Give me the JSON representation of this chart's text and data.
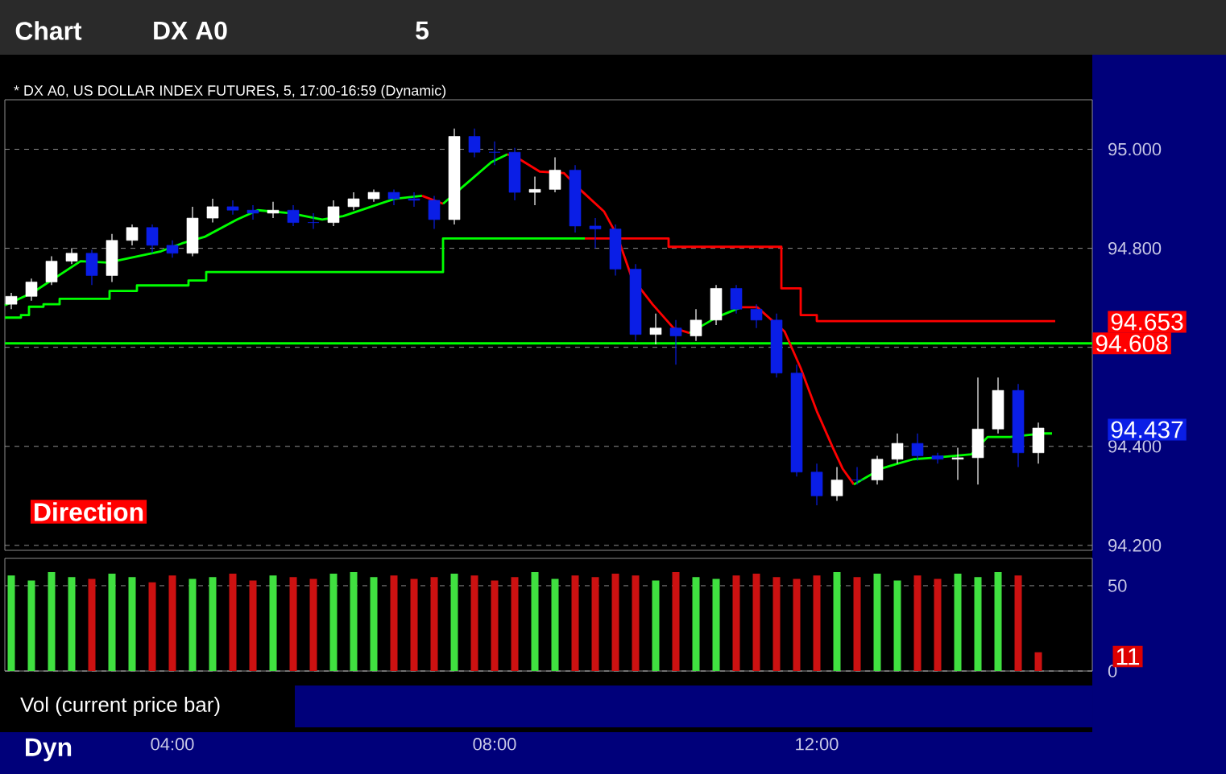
{
  "chart_data": [
    {
      "type": "candlestick",
      "title": "* DX A0, US DOLLAR INDEX FUTURES, 5, 17:00-16:59 (Dynamic)",
      "x": [
        2.0,
        2.25,
        2.5,
        2.75,
        3.0,
        3.25,
        3.5,
        3.75,
        4.0,
        4.25,
        4.5,
        4.75,
        5.0,
        5.25,
        5.5,
        5.75,
        6.0,
        6.25,
        6.5,
        6.75,
        7.0,
        7.25,
        7.5,
        7.75,
        8.0,
        8.25,
        8.5,
        8.75,
        9.0,
        9.25,
        9.5,
        9.75,
        10.0,
        10.25,
        10.5,
        10.75,
        11.0,
        11.25,
        11.5,
        11.75,
        12.0,
        12.25,
        12.5,
        12.75,
        13.0,
        13.25,
        13.5,
        13.75,
        14.0,
        14.25,
        14.5,
        14.75
      ],
      "ohlc": [
        [
          94.687,
          94.71,
          94.677,
          94.703
        ],
        [
          94.703,
          94.739,
          94.694,
          94.732
        ],
        [
          94.732,
          94.784,
          94.726,
          94.774
        ],
        [
          94.774,
          94.8,
          94.768,
          94.79
        ],
        [
          94.79,
          94.797,
          94.726,
          94.745
        ],
        [
          94.745,
          94.829,
          94.732,
          94.816
        ],
        [
          94.816,
          94.848,
          94.806,
          94.842
        ],
        [
          94.842,
          94.848,
          94.79,
          94.806
        ],
        [
          94.806,
          94.816,
          94.781,
          94.79
        ],
        [
          94.79,
          94.884,
          94.784,
          94.861
        ],
        [
          94.861,
          94.9,
          94.852,
          94.884
        ],
        [
          94.884,
          94.897,
          94.868,
          94.877
        ],
        [
          94.877,
          94.887,
          94.858,
          94.871
        ],
        [
          94.871,
          94.894,
          94.861,
          94.877
        ],
        [
          94.877,
          94.887,
          94.845,
          94.852
        ],
        [
          94.852,
          94.871,
          94.839,
          94.852
        ],
        [
          94.852,
          94.897,
          94.845,
          94.884
        ],
        [
          94.884,
          94.913,
          94.877,
          94.9
        ],
        [
          94.9,
          94.919,
          94.894,
          94.913
        ],
        [
          94.913,
          94.919,
          94.887,
          94.9
        ],
        [
          94.9,
          94.913,
          94.884,
          94.897
        ],
        [
          94.897,
          94.906,
          94.839,
          94.858
        ],
        [
          94.858,
          95.042,
          94.848,
          95.026
        ],
        [
          95.026,
          95.042,
          94.984,
          94.994
        ],
        [
          94.994,
          95.016,
          94.968,
          94.994
        ],
        [
          94.994,
          95.003,
          94.897,
          94.913
        ],
        [
          94.913,
          94.945,
          94.887,
          94.919
        ],
        [
          94.919,
          94.984,
          94.913,
          94.958
        ],
        [
          94.958,
          94.968,
          94.832,
          94.845
        ],
        [
          94.845,
          94.861,
          94.8,
          94.839
        ],
        [
          94.839,
          94.848,
          94.745,
          94.758
        ],
        [
          94.758,
          94.768,
          94.613,
          94.626
        ],
        [
          94.626,
          94.668,
          94.606,
          94.639
        ],
        [
          94.639,
          94.655,
          94.565,
          94.623
        ],
        [
          94.623,
          94.677,
          94.613,
          94.655
        ],
        [
          94.655,
          94.726,
          94.645,
          94.719
        ],
        [
          94.719,
          94.726,
          94.668,
          94.677
        ],
        [
          94.677,
          94.687,
          94.639,
          94.655
        ],
        [
          94.655,
          94.668,
          94.539,
          94.548
        ],
        [
          94.548,
          94.565,
          94.339,
          94.348
        ],
        [
          94.348,
          94.365,
          94.281,
          94.3
        ],
        [
          94.3,
          94.358,
          94.29,
          94.332
        ],
        [
          94.332,
          94.358,
          94.323,
          94.332
        ],
        [
          94.332,
          94.381,
          94.323,
          94.374
        ],
        [
          94.374,
          94.426,
          94.365,
          94.406
        ],
        [
          94.406,
          94.426,
          94.371,
          94.381
        ],
        [
          94.381,
          94.387,
          94.365,
          94.374
        ],
        [
          94.374,
          94.397,
          94.332,
          94.377
        ],
        [
          94.377,
          94.539,
          94.323,
          94.435
        ],
        [
          94.435,
          94.539,
          94.426,
          94.513
        ],
        [
          94.513,
          94.526,
          94.358,
          94.387
        ],
        [
          94.387,
          94.448,
          94.365,
          94.437
        ]
      ],
      "colors": [
        "#ffffff",
        "#ffffff",
        "#ffffff",
        "#ffffff",
        "#0a1ee6",
        "#ffffff",
        "#ffffff",
        "#0a1ee6",
        "#0a1ee6",
        "#ffffff",
        "#ffffff",
        "#0a1ee6",
        "#0a1ee6",
        "#ffffff",
        "#0a1ee6",
        "#0a1ee6",
        "#ffffff",
        "#ffffff",
        "#ffffff",
        "#0a1ee6",
        "#0a1ee6",
        "#0a1ee6",
        "#ffffff",
        "#0a1ee6",
        "#0a1ee6",
        "#0a1ee6",
        "#ffffff",
        "#ffffff",
        "#0a1ee6",
        "#0a1ee6",
        "#0a1ee6",
        "#0a1ee6",
        "#ffffff",
        "#0a1ee6",
        "#ffffff",
        "#ffffff",
        "#0a1ee6",
        "#0a1ee6",
        "#0a1ee6",
        "#0a1ee6",
        "#0a1ee6",
        "#ffffff",
        "#0a1ee6",
        "#ffffff",
        "#ffffff",
        "#0a1ee6",
        "#0a1ee6",
        "#ffffff",
        "#ffffff",
        "#ffffff",
        "#0a1ee6",
        "#ffffff"
      ],
      "xlim": [
        1.92,
        15.42
      ],
      "ylim": [
        94.19,
        95.1
      ],
      "yticks": [
        {
          "value": 94.2,
          "label": "94.200"
        },
        {
          "value": 94.4,
          "label": "94.400"
        },
        {
          "value": 94.6,
          "label": null
        },
        {
          "value": 94.8,
          "label": "94.800"
        },
        {
          "value": 95.0,
          "label": "95.000"
        }
      ],
      "grid": "y",
      "tick_labels": "y",
      "series": [
        {
          "type": "step",
          "color": "#00ff00",
          "x": [
            1.92,
            2.12,
            2.22,
            2.4,
            2.6,
            3.22,
            3.56,
            4.2,
            4.42,
            7.36,
            9.12
          ],
          "values": [
            94.66,
            94.665,
            94.682,
            94.687,
            94.698,
            94.714,
            94.725,
            94.735,
            94.752,
            94.82,
            94.82
          ]
        },
        {
          "type": "step",
          "color": "#ff0000",
          "x": [
            9.12,
            10.16,
            11.56,
            11.8,
            12.0,
            14.96
          ],
          "values": [
            94.82,
            94.803,
            94.719,
            94.665,
            94.653,
            94.653
          ]
        },
        {
          "type": "line",
          "color": "#00ff00",
          "x": [
            1.92,
            2.26,
            2.86,
            3.2,
            3.86,
            4.12,
            4.4,
            4.8,
            5.06,
            5.46,
            5.86,
            6.12,
            6.52,
            6.76,
            7.1
          ],
          "values": [
            94.685,
            94.71,
            94.774,
            94.771,
            94.794,
            94.81,
            94.823,
            94.858,
            94.877,
            94.871,
            94.858,
            94.865,
            94.887,
            94.9,
            94.906
          ]
        },
        {
          "type": "line",
          "color": "#ff0000",
          "x": [
            7.1,
            7.36
          ],
          "values": [
            94.906,
            94.89
          ]
        },
        {
          "type": "line",
          "color": "#00ff00",
          "x": [
            7.36,
            7.66,
            7.96,
            8.16
          ],
          "values": [
            94.89,
            94.932,
            94.974,
            94.99
          ]
        },
        {
          "type": "line",
          "color": "#ff0000",
          "x": [
            8.16,
            8.3,
            8.56,
            8.86,
            9.06,
            9.36,
            9.52,
            9.7,
            9.96,
            10.22,
            10.42
          ],
          "values": [
            94.99,
            94.981,
            94.955,
            94.952,
            94.919,
            94.874,
            94.826,
            94.742,
            94.687,
            94.639,
            94.629
          ]
        },
        {
          "type": "line",
          "color": "#00ff00",
          "x": [
            10.42,
            10.76,
            11.06
          ],
          "values": [
            94.629,
            94.661,
            94.681
          ]
        },
        {
          "type": "line",
          "color": "#ff0000",
          "x": [
            11.06,
            11.26,
            11.6,
            11.8,
            12.0,
            12.2,
            12.32,
            12.46
          ],
          "values": [
            94.681,
            94.681,
            94.632,
            94.558,
            94.471,
            94.397,
            94.355,
            94.323
          ]
        },
        {
          "type": "line",
          "color": "#00ff00",
          "x": [
            12.46,
            12.8,
            13.0,
            13.2,
            13.46,
            13.92,
            14.12,
            14.4,
            14.8,
            14.92
          ],
          "values": [
            94.323,
            94.355,
            94.365,
            94.374,
            94.377,
            94.384,
            94.419,
            94.419,
            94.426,
            94.426
          ]
        }
      ],
      "ref_lines": [
        {
          "axis": "y",
          "value": 94.608,
          "label": "94.608",
          "color": "#00ff00"
        }
      ],
      "annotations": [
        "Chart",
        "DX A0",
        "5",
        "Direction",
        "94.653",
        "94.437"
      ]
    },
    {
      "type": "bar",
      "title": "Vol (current price bar)",
      "x": [
        2.0,
        2.25,
        2.5,
        2.75,
        3.0,
        3.25,
        3.5,
        3.75,
        4.0,
        4.25,
        4.5,
        4.75,
        5.0,
        5.25,
        5.5,
        5.75,
        6.0,
        6.25,
        6.5,
        6.75,
        7.0,
        7.25,
        7.5,
        7.75,
        8.0,
        8.25,
        8.5,
        8.75,
        9.0,
        9.25,
        9.5,
        9.75,
        10.0,
        10.25,
        10.5,
        10.75,
        11.0,
        11.25,
        11.5,
        11.75,
        12.0,
        12.25,
        12.5,
        12.75,
        13.0,
        13.25,
        13.5,
        13.75,
        14.0,
        14.25,
        14.5,
        14.75
      ],
      "values": [
        56,
        53,
        58,
        55,
        54,
        57,
        55,
        52,
        56,
        54,
        55,
        57,
        53,
        56,
        55,
        54,
        57,
        58,
        55,
        56,
        54,
        55,
        57,
        56,
        53,
        55,
        58,
        54,
        56,
        55,
        57,
        56,
        53,
        58,
        55,
        54,
        56,
        57,
        55,
        54,
        56,
        58,
        55,
        57,
        53,
        56,
        54,
        57,
        55,
        58,
        56,
        11
      ],
      "colors": [
        "#40e040",
        "#40e040",
        "#40e040",
        "#40e040",
        "#cc1111",
        "#40e040",
        "#40e040",
        "#cc1111",
        "#cc1111",
        "#40e040",
        "#40e040",
        "#cc1111",
        "#cc1111",
        "#40e040",
        "#cc1111",
        "#cc1111",
        "#40e040",
        "#40e040",
        "#40e040",
        "#cc1111",
        "#cc1111",
        "#cc1111",
        "#40e040",
        "#cc1111",
        "#cc1111",
        "#cc1111",
        "#40e040",
        "#40e040",
        "#cc1111",
        "#cc1111",
        "#cc1111",
        "#cc1111",
        "#40e040",
        "#cc1111",
        "#40e040",
        "#40e040",
        "#cc1111",
        "#cc1111",
        "#cc1111",
        "#cc1111",
        "#cc1111",
        "#40e040",
        "#cc1111",
        "#40e040",
        "#40e040",
        "#cc1111",
        "#cc1111",
        "#40e040",
        "#40e040",
        "#40e040",
        "#cc1111",
        "#cc1111"
      ],
      "xlim": [
        1.92,
        15.42
      ],
      "ylim": [
        0,
        66
      ],
      "xticks": [
        {
          "value": 4,
          "label": "04:00"
        },
        {
          "value": 8,
          "label": "08:00"
        },
        {
          "value": 12,
          "label": "12:00"
        }
      ],
      "yticks": [
        0,
        50
      ],
      "grid": "y",
      "annotations": [
        "Dyn",
        "11"
      ]
    }
  ]
}
